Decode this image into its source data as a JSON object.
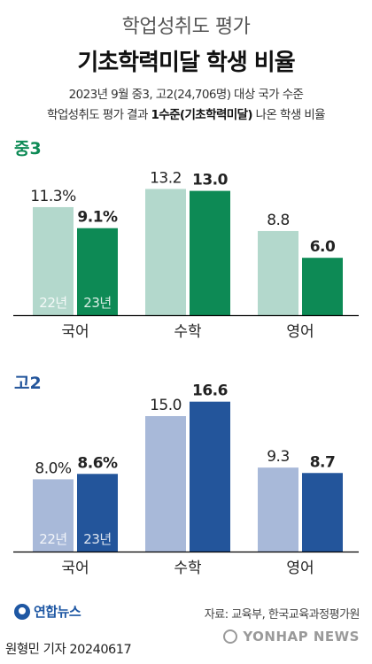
{
  "header": {
    "title_line1": "학업성취도 평가",
    "title_line2": "기초학력미달 학생 비율",
    "subtitle_line1": "2023년 9월 중3, 고2(24,706명) 대상 국가 수준",
    "subtitle_line2_pre": "학업성취도 평가 결과 ",
    "subtitle_line2_bold": "1수준(기초학력미달)",
    "subtitle_line2_post": " 나온 학생 비율"
  },
  "colors": {
    "g3_22": "#b3d8cc",
    "g3_23": "#0d8a55",
    "g3_label": "#0d8a55",
    "h2_22": "#a8b9d9",
    "h2_23": "#23559b",
    "h2_label": "#23559b",
    "axis": "#000000"
  },
  "chart_data": [
    {
      "type": "bar",
      "group_label": "중3",
      "categories": [
        "국어",
        "수학",
        "영어"
      ],
      "series": [
        {
          "name": "22년",
          "values": [
            11.3,
            13.2,
            8.8
          ]
        },
        {
          "name": "23년",
          "values": [
            9.1,
            13.0,
            6.0
          ]
        }
      ],
      "value_labels": [
        [
          "11.3%",
          "13.2",
          "8.8"
        ],
        [
          "9.1%",
          "13.0",
          "6.0"
        ]
      ],
      "legend_in_first_category": true
    },
    {
      "type": "bar",
      "group_label": "고2",
      "categories": [
        "국어",
        "수학",
        "영어"
      ],
      "series": [
        {
          "name": "22년",
          "values": [
            8.0,
            15.0,
            9.3
          ]
        },
        {
          "name": "23년",
          "values": [
            8.6,
            16.6,
            8.7
          ]
        }
      ],
      "value_labels": [
        [
          "8.0%",
          "15.0",
          "9.3"
        ],
        [
          "8.6%",
          "16.6",
          "8.7"
        ]
      ],
      "legend_in_first_category": true
    }
  ],
  "footer": {
    "logo_text": "연합뉴스",
    "source": "자료: 교육부, 한국교육과정평가원",
    "reporter": "원형민 기자  20240617",
    "watermark": "YONHAP NEWS"
  }
}
